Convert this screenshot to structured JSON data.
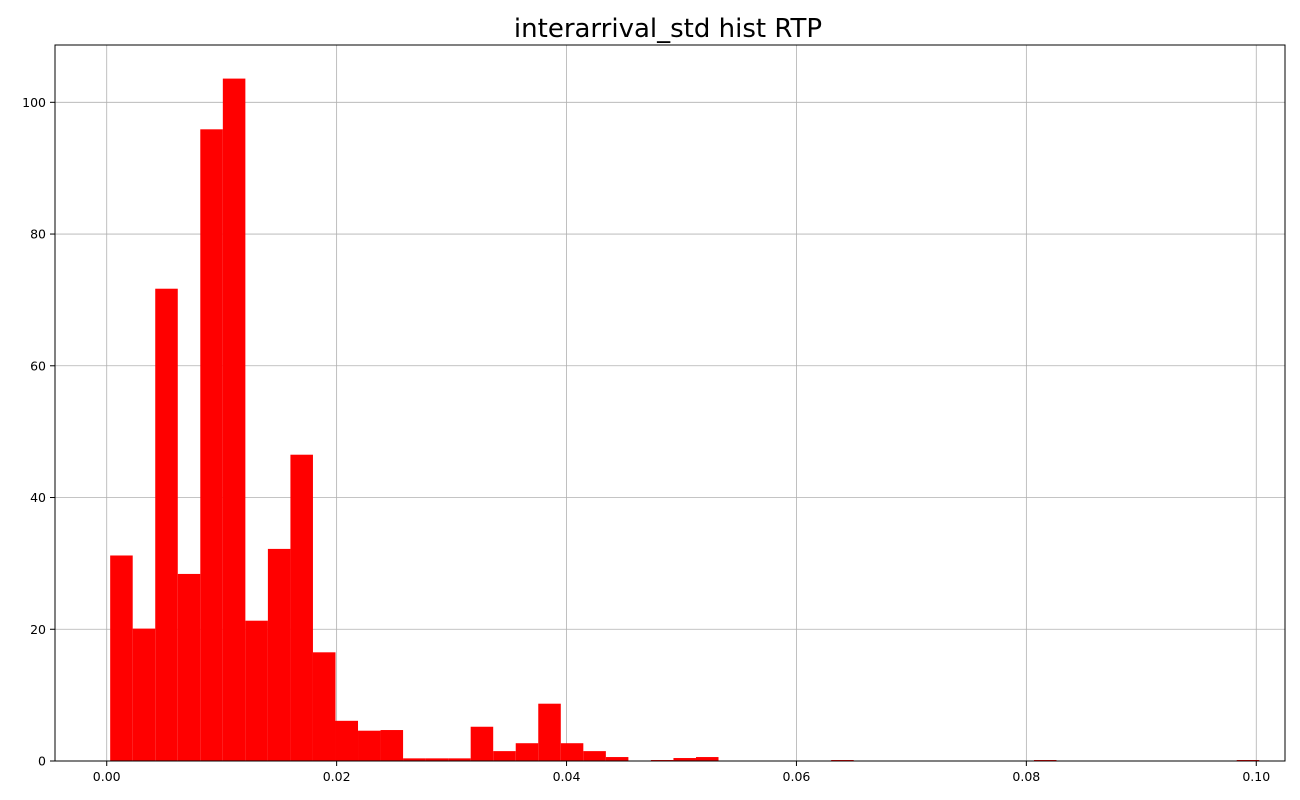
{
  "chart_data": {
    "type": "bar",
    "title": "interarrival_std hist RTP",
    "xlabel": "",
    "ylabel": "",
    "bar_color": "#ff0000",
    "grid": true,
    "xlim": [
      -0.0045,
      0.1025
    ],
    "ylim": [
      0,
      108.7
    ],
    "xticks": [
      {
        "value": 0.0,
        "label": "0.00"
      },
      {
        "value": 0.02,
        "label": "0.02"
      },
      {
        "value": 0.04,
        "label": "0.04"
      },
      {
        "value": 0.06,
        "label": "0.06"
      },
      {
        "value": 0.08,
        "label": "0.08"
      },
      {
        "value": 0.1,
        "label": "0.10"
      }
    ],
    "yticks": [
      {
        "value": 0,
        "label": "0"
      },
      {
        "value": 20,
        "label": "20"
      },
      {
        "value": 40,
        "label": "40"
      },
      {
        "value": 60,
        "label": "60"
      },
      {
        "value": 80,
        "label": "80"
      },
      {
        "value": 100,
        "label": "100"
      }
    ],
    "bin_start": 0.0003,
    "bin_width": 0.00196,
    "values": [
      31.2,
      20.1,
      71.7,
      28.4,
      95.9,
      103.6,
      21.3,
      32.2,
      46.5,
      16.5,
      6.1,
      4.6,
      4.7,
      0.4,
      0.4,
      0.4,
      5.2,
      1.5,
      2.7,
      8.7,
      2.7,
      1.5,
      0.6,
      0,
      0.15,
      0.45,
      0.6,
      0,
      0,
      0,
      0,
      0,
      0.15,
      0,
      0,
      0,
      0,
      0,
      0,
      0,
      0,
      0.15,
      0,
      0,
      0,
      0,
      0,
      0,
      0,
      0,
      0.15
    ]
  }
}
